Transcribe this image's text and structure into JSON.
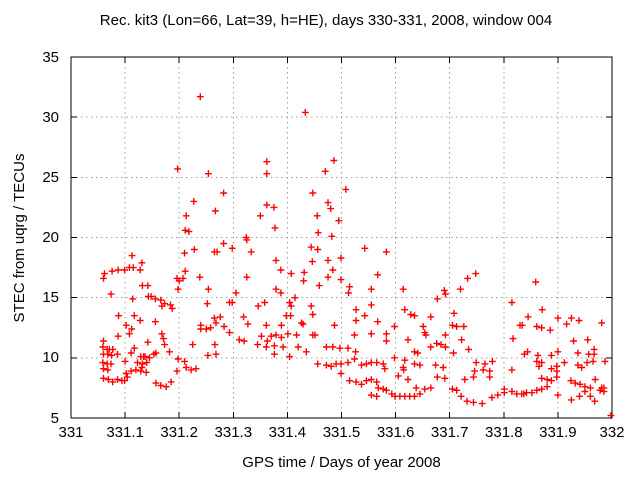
{
  "window": {
    "background": "#ffffff"
  },
  "chart_data": {
    "type": "scatter",
    "title": "Rec. kit3 (Lon=66, Lat=39, h=HE), days 330-331, 2008, window 004",
    "xlabel": "GPS time / Days of year 2008",
    "ylabel": "STEC from uqrg / TECUs",
    "xlim": [
      331,
      332
    ],
    "ylim": [
      5,
      35
    ],
    "xticks": [
      331,
      331.1,
      331.2,
      331.3,
      331.4,
      331.5,
      331.6,
      331.7,
      331.8,
      331.9,
      332
    ],
    "xtick_labels": [
      "331",
      "331.1",
      "331.2",
      "331.3",
      "331.4",
      "331.5",
      "331.6",
      "331.7",
      "331.8",
      "331.9",
      "332"
    ],
    "yticks": [
      5,
      10,
      15,
      20,
      25,
      30,
      35
    ],
    "ytick_labels": [
      "5",
      "10",
      "15",
      "20",
      "25",
      "30",
      "35"
    ],
    "grid": true,
    "grid_style": "dotted",
    "grid_color": "#9e9e9e",
    "frame_color": "#000000",
    "legend": false,
    "marker": "plus",
    "marker_color": "#ff0000",
    "series_name": "STEC",
    "points": [
      [
        331.239,
        31.7
      ],
      [
        331.197,
        25.7
      ],
      [
        331.254,
        25.3
      ],
      [
        331.282,
        23.7
      ],
      [
        331.227,
        23.0
      ],
      [
        331.267,
        22.2
      ],
      [
        331.213,
        21.8
      ],
      [
        331.211,
        20.6
      ],
      [
        331.218,
        20.5
      ],
      [
        331.324,
        20.0
      ],
      [
        331.433,
        30.4
      ],
      [
        331.362,
        26.3
      ],
      [
        331.362,
        25.3
      ],
      [
        331.486,
        26.4
      ],
      [
        331.47,
        25.5
      ],
      [
        331.508,
        24.0
      ],
      [
        331.447,
        23.7
      ],
      [
        331.362,
        22.7
      ],
      [
        331.375,
        22.5
      ],
      [
        331.35,
        21.8
      ],
      [
        331.475,
        22.9
      ],
      [
        331.48,
        22.4
      ],
      [
        331.455,
        21.8
      ],
      [
        331.495,
        21.4
      ],
      [
        331.377,
        20.8
      ],
      [
        331.457,
        20.4
      ],
      [
        331.482,
        20.1
      ],
      [
        331.113,
        18.5
      ],
      [
        331.131,
        17.9
      ],
      [
        331.228,
        19.0
      ],
      [
        331.265,
        18.8
      ],
      [
        331.27,
        18.8
      ],
      [
        331.282,
        19.5
      ],
      [
        331.298,
        19.1
      ],
      [
        331.325,
        19.8
      ],
      [
        331.062,
        17.0
      ],
      [
        331.06,
        16.6
      ],
      [
        331.076,
        17.2
      ],
      [
        331.087,
        17.3
      ],
      [
        331.099,
        17.3
      ],
      [
        331.108,
        17.5
      ],
      [
        331.115,
        17.5
      ],
      [
        331.128,
        17.3
      ],
      [
        331.074,
        15.3
      ],
      [
        331.114,
        14.9
      ],
      [
        331.132,
        16.0
      ],
      [
        331.142,
        16.0
      ],
      [
        331.143,
        15.1
      ],
      [
        331.148,
        15.1
      ],
      [
        331.156,
        14.9
      ],
      [
        331.166,
        14.8
      ],
      [
        331.168,
        14.3
      ],
      [
        331.173,
        14.5
      ],
      [
        331.184,
        14.4
      ],
      [
        331.187,
        14.1
      ],
      [
        331.196,
        16.6
      ],
      [
        331.2,
        16.4
      ],
      [
        331.211,
        17.2
      ],
      [
        331.21,
        18.7
      ],
      [
        331.088,
        13.5
      ],
      [
        331.102,
        12.7
      ],
      [
        331.108,
        12.0
      ],
      [
        331.117,
        13.5
      ],
      [
        331.112,
        12.4
      ],
      [
        331.128,
        13.1
      ],
      [
        331.156,
        13.0
      ],
      [
        331.168,
        12.0
      ],
      [
        331.171,
        11.6
      ],
      [
        331.173,
        11.1
      ],
      [
        331.142,
        11.3
      ],
      [
        331.182,
        10.5
      ],
      [
        331.087,
        11.8
      ],
      [
        331.06,
        11.4
      ],
      [
        331.059,
        10.9
      ],
      [
        331.067,
        10.7
      ],
      [
        331.071,
        10.7
      ],
      [
        331.077,
        10.7
      ],
      [
        331.06,
        10.3
      ],
      [
        331.068,
        10.3
      ],
      [
        331.075,
        10.2
      ],
      [
        331.086,
        10.3
      ],
      [
        331.059,
        9.6
      ],
      [
        331.067,
        9.5
      ],
      [
        331.074,
        9.5
      ],
      [
        331.06,
        9.1
      ],
      [
        331.068,
        9.0
      ],
      [
        331.06,
        8.3
      ],
      [
        331.069,
        8.2
      ],
      [
        331.077,
        8.0
      ],
      [
        331.086,
        8.2
      ],
      [
        331.094,
        8.1
      ],
      [
        331.099,
        8.1
      ],
      [
        331.104,
        8.4
      ],
      [
        331.102,
        8.7
      ],
      [
        331.111,
        8.9
      ],
      [
        331.12,
        9.0
      ],
      [
        331.129,
        8.9
      ],
      [
        331.139,
        8.8
      ],
      [
        331.131,
        9.2
      ],
      [
        331.123,
        9.6
      ],
      [
        331.132,
        9.5
      ],
      [
        331.14,
        9.6
      ],
      [
        331.1,
        9.7
      ],
      [
        331.129,
        10.1
      ],
      [
        331.134,
        10.1
      ],
      [
        331.137,
        10.1
      ],
      [
        331.145,
        10.0
      ],
      [
        331.153,
        10.3
      ],
      [
        331.157,
        10.4
      ],
      [
        331.157,
        7.9
      ],
      [
        331.166,
        7.7
      ],
      [
        331.176,
        7.6
      ],
      [
        331.185,
        8.0
      ],
      [
        331.111,
        10.4
      ],
      [
        331.117,
        10.8
      ],
      [
        331.207,
        16.6
      ],
      [
        331.198,
        15.7
      ],
      [
        331.238,
        16.7
      ],
      [
        331.254,
        15.7
      ],
      [
        331.305,
        15.4
      ],
      [
        331.325,
        16.7
      ],
      [
        331.252,
        14.5
      ],
      [
        331.293,
        14.6
      ],
      [
        331.298,
        14.6
      ],
      [
        331.265,
        13.3
      ],
      [
        331.276,
        13.4
      ],
      [
        331.268,
        12.9
      ],
      [
        331.258,
        12.5
      ],
      [
        331.24,
        12.7
      ],
      [
        331.24,
        12.4
      ],
      [
        331.25,
        12.4
      ],
      [
        331.283,
        12.6
      ],
      [
        331.293,
        12.1
      ],
      [
        331.319,
        13.4
      ],
      [
        331.327,
        12.8
      ],
      [
        331.311,
        11.5
      ],
      [
        331.32,
        11.4
      ],
      [
        331.266,
        11.1
      ],
      [
        331.268,
        10.3
      ],
      [
        331.225,
        11.1
      ],
      [
        331.253,
        10.2
      ],
      [
        331.198,
        9.9
      ],
      [
        331.21,
        9.7
      ],
      [
        331.213,
        9.2
      ],
      [
        331.196,
        8.9
      ],
      [
        331.222,
        9.0
      ],
      [
        331.231,
        9.1
      ],
      [
        331.333,
        18.8
      ],
      [
        331.379,
        18.1
      ],
      [
        331.444,
        19.2
      ],
      [
        331.456,
        19.0
      ],
      [
        331.499,
        18.3
      ],
      [
        331.543,
        19.1
      ],
      [
        331.583,
        18.8
      ],
      [
        331.446,
        18.0
      ],
      [
        331.475,
        18.1
      ],
      [
        331.388,
        17.3
      ],
      [
        331.407,
        17.0
      ],
      [
        331.431,
        17.1
      ],
      [
        331.43,
        16.4
      ],
      [
        331.475,
        16.7
      ],
      [
        331.459,
        16.0
      ],
      [
        331.484,
        17.3
      ],
      [
        331.499,
        16.5
      ],
      [
        331.567,
        16.9
      ],
      [
        331.515,
        15.9
      ],
      [
        331.513,
        15.4
      ],
      [
        331.555,
        15.7
      ],
      [
        331.614,
        15.7
      ],
      [
        331.379,
        15.7
      ],
      [
        331.388,
        15.4
      ],
      [
        331.346,
        14.3
      ],
      [
        331.358,
        14.6
      ],
      [
        331.414,
        15.0
      ],
      [
        331.404,
        14.6
      ],
      [
        331.407,
        14.3
      ],
      [
        331.444,
        14.3
      ],
      [
        331.447,
        13.6
      ],
      [
        331.398,
        13.5
      ],
      [
        331.406,
        13.5
      ],
      [
        331.426,
        12.9
      ],
      [
        331.429,
        12.8
      ],
      [
        331.361,
        12.7
      ],
      [
        331.389,
        12.7
      ],
      [
        331.352,
        11.8
      ],
      [
        331.363,
        11.4
      ],
      [
        331.37,
        11.8
      ],
      [
        331.379,
        11.9
      ],
      [
        331.389,
        11.7
      ],
      [
        331.401,
        12.0
      ],
      [
        331.417,
        11.9
      ],
      [
        331.447,
        11.9
      ],
      [
        331.451,
        11.9
      ],
      [
        331.487,
        12.7
      ],
      [
        331.524,
        11.9
      ],
      [
        331.555,
        12.0
      ],
      [
        331.583,
        12.0
      ],
      [
        331.583,
        11.4
      ],
      [
        331.567,
        13.0
      ],
      [
        331.598,
        12.6
      ],
      [
        331.527,
        13.1
      ],
      [
        331.543,
        13.5
      ],
      [
        331.555,
        14.4
      ],
      [
        331.527,
        14.0
      ],
      [
        331.617,
        14.0
      ],
      [
        331.628,
        13.6
      ],
      [
        331.635,
        13.5
      ],
      [
        331.665,
        13.4
      ],
      [
        331.651,
        12.6
      ],
      [
        331.654,
        12.1
      ],
      [
        331.656,
        11.9
      ],
      [
        331.623,
        11.5
      ],
      [
        331.345,
        11.1
      ],
      [
        331.361,
        10.9
      ],
      [
        331.376,
        11.0
      ],
      [
        331.392,
        10.9
      ],
      [
        331.42,
        10.9
      ],
      [
        331.435,
        10.5
      ],
      [
        331.472,
        10.9
      ],
      [
        331.484,
        10.9
      ],
      [
        331.497,
        10.8
      ],
      [
        331.512,
        10.8
      ],
      [
        331.526,
        10.5
      ],
      [
        331.376,
        10.3
      ],
      [
        331.404,
        10.1
      ],
      [
        331.456,
        9.5
      ],
      [
        331.472,
        9.4
      ],
      [
        331.481,
        9.3
      ],
      [
        331.49,
        9.5
      ],
      [
        331.499,
        9.5
      ],
      [
        331.512,
        9.6
      ],
      [
        331.524,
        9.9
      ],
      [
        331.537,
        9.4
      ],
      [
        331.546,
        9.5
      ],
      [
        331.555,
        9.6
      ],
      [
        331.565,
        9.6
      ],
      [
        331.577,
        9.5
      ],
      [
        331.58,
        9.1
      ],
      [
        331.499,
        8.7
      ],
      [
        331.515,
        8.1
      ],
      [
        331.527,
        8.0
      ],
      [
        331.537,
        7.8
      ],
      [
        331.546,
        8.1
      ],
      [
        331.555,
        8.2
      ],
      [
        331.565,
        8.0
      ],
      [
        331.555,
        6.9
      ],
      [
        331.565,
        6.8
      ],
      [
        331.568,
        7.5
      ],
      [
        331.577,
        7.4
      ],
      [
        331.583,
        7.3
      ],
      [
        331.593,
        7.0
      ],
      [
        331.599,
        6.8
      ],
      [
        331.608,
        6.8
      ],
      [
        331.617,
        6.8
      ],
      [
        331.626,
        6.8
      ],
      [
        331.635,
        6.8
      ],
      [
        331.645,
        7.0
      ],
      [
        331.605,
        8.5
      ],
      [
        331.614,
        9.2
      ],
      [
        331.615,
        9.0
      ],
      [
        331.623,
        8.2
      ],
      [
        331.638,
        7.5
      ],
      [
        331.654,
        7.4
      ],
      [
        331.665,
        7.5
      ],
      [
        331.598,
        10.0
      ],
      [
        331.617,
        9.8
      ],
      [
        331.635,
        9.5
      ],
      [
        331.645,
        9.4
      ],
      [
        331.635,
        10.5
      ],
      [
        331.641,
        10.4
      ],
      [
        331.665,
        10.9
      ],
      [
        331.733,
        16.6
      ],
      [
        331.748,
        17.0
      ],
      [
        331.72,
        15.7
      ],
      [
        331.69,
        15.6
      ],
      [
        331.692,
        15.3
      ],
      [
        331.677,
        14.9
      ],
      [
        331.859,
        16.3
      ],
      [
        331.815,
        14.6
      ],
      [
        331.871,
        14.0
      ],
      [
        331.708,
        13.7
      ],
      [
        331.845,
        13.4
      ],
      [
        331.9,
        13.3
      ],
      [
        331.925,
        13.3
      ],
      [
        331.939,
        13.1
      ],
      [
        331.916,
        12.8
      ],
      [
        331.981,
        12.9
      ],
      [
        331.705,
        12.7
      ],
      [
        331.713,
        12.6
      ],
      [
        331.726,
        12.6
      ],
      [
        331.83,
        12.7
      ],
      [
        331.834,
        12.7
      ],
      [
        331.861,
        12.6
      ],
      [
        331.87,
        12.5
      ],
      [
        331.886,
        12.3
      ],
      [
        331.692,
        11.9
      ],
      [
        331.722,
        11.5
      ],
      [
        331.817,
        11.6
      ],
      [
        331.929,
        11.4
      ],
      [
        331.955,
        11.5
      ],
      [
        331.676,
        11.2
      ],
      [
        331.684,
        11.1
      ],
      [
        331.692,
        10.9
      ],
      [
        331.735,
        10.7
      ],
      [
        331.707,
        10.4
      ],
      [
        331.838,
        10.3
      ],
      [
        331.844,
        10.5
      ],
      [
        331.863,
        10.2
      ],
      [
        331.888,
        10.2
      ],
      [
        331.9,
        10.5
      ],
      [
        331.967,
        10.7
      ],
      [
        331.967,
        10.3
      ],
      [
        331.937,
        10.4
      ],
      [
        331.957,
        10.3
      ],
      [
        331.749,
        9.6
      ],
      [
        331.765,
        9.5
      ],
      [
        331.779,
        9.7
      ],
      [
        331.861,
        9.7
      ],
      [
        331.87,
        9.6
      ],
      [
        331.865,
        9.3
      ],
      [
        331.888,
        9.1
      ],
      [
        331.898,
        9.3
      ],
      [
        331.898,
        8.9
      ],
      [
        331.912,
        9.6
      ],
      [
        331.937,
        9.4
      ],
      [
        331.944,
        9.2
      ],
      [
        331.954,
        9.6
      ],
      [
        331.965,
        9.7
      ],
      [
        331.987,
        9.7
      ],
      [
        331.674,
        9.4
      ],
      [
        331.688,
        9.2
      ],
      [
        331.746,
        8.9
      ],
      [
        331.762,
        9.0
      ],
      [
        331.774,
        8.9
      ],
      [
        331.815,
        9.0
      ],
      [
        331.728,
        8.2
      ],
      [
        331.744,
        8.4
      ],
      [
        331.774,
        8.4
      ],
      [
        331.677,
        8.4
      ],
      [
        331.691,
        8.3
      ],
      [
        331.87,
        8.3
      ],
      [
        331.88,
        8.2
      ],
      [
        331.888,
        8.1
      ],
      [
        331.898,
        8.4
      ],
      [
        331.924,
        8.1
      ],
      [
        331.932,
        7.9
      ],
      [
        331.941,
        7.8
      ],
      [
        331.95,
        7.6
      ],
      [
        331.96,
        7.5
      ],
      [
        331.969,
        8.2
      ],
      [
        331.981,
        7.5
      ],
      [
        331.985,
        7.5
      ],
      [
        331.705,
        7.4
      ],
      [
        331.713,
        7.3
      ],
      [
        331.721,
        6.8
      ],
      [
        331.732,
        6.4
      ],
      [
        331.744,
        6.3
      ],
      [
        331.76,
        6.2
      ],
      [
        331.778,
        6.7
      ],
      [
        331.789,
        6.9
      ],
      [
        331.801,
        7.4
      ],
      [
        331.801,
        7.1
      ],
      [
        331.815,
        7.2
      ],
      [
        331.824,
        7.0
      ],
      [
        331.833,
        7.0
      ],
      [
        331.837,
        7.0
      ],
      [
        331.842,
        7.1
      ],
      [
        331.852,
        7.1
      ],
      [
        331.861,
        7.3
      ],
      [
        331.87,
        7.4
      ],
      [
        331.88,
        7.6
      ],
      [
        331.9,
        6.9
      ],
      [
        331.925,
        6.5
      ],
      [
        331.94,
        6.8
      ],
      [
        331.95,
        7.2
      ],
      [
        331.96,
        6.8
      ],
      [
        331.968,
        6.4
      ],
      [
        331.978,
        7.3
      ],
      [
        331.985,
        7.2
      ],
      [
        331.998,
        5.2
      ]
    ]
  }
}
